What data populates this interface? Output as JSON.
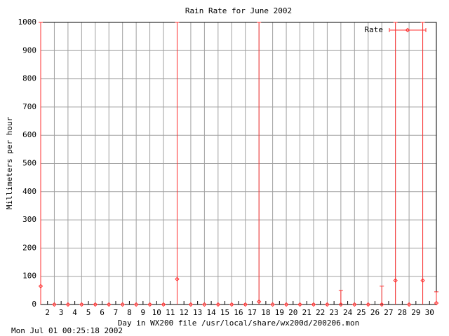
{
  "chart_data": {
    "type": "errorbar",
    "title": "Rain Rate for June 2002",
    "x_label": "Day in WX200 file /usr/local/share/wx200d/200206.mon",
    "y_label": "Millimeters per hour",
    "footer": "Mon Jul 01 00:25:18 2002",
    "x": [
      1.5,
      2.5,
      3.5,
      4.5,
      5.5,
      6.5,
      7.5,
      8.5,
      9.5,
      10.5,
      11.5,
      12.5,
      13.5,
      14.5,
      15.5,
      16.5,
      17.5,
      18.5,
      19.5,
      20.5,
      21.5,
      22.5,
      23.5,
      24.5,
      25.5,
      26.5,
      27.5,
      28.5,
      29.5,
      30.5
    ],
    "series": [
      {
        "name": "Rate",
        "color": "#ff3030",
        "values": [
          65,
          0,
          0,
          0,
          0,
          0,
          0,
          0,
          0,
          0,
          90,
          0,
          0,
          0,
          0,
          0,
          10,
          0,
          0,
          0,
          0,
          0,
          0,
          0,
          0,
          0,
          85,
          0,
          85,
          5
        ],
        "low": [
          0,
          0,
          0,
          0,
          0,
          0,
          0,
          0,
          0,
          0,
          0,
          0,
          0,
          0,
          0,
          0,
          0,
          0,
          0,
          0,
          0,
          0,
          0,
          0,
          0,
          0,
          0,
          0,
          0,
          0
        ],
        "high": [
          1000,
          0,
          0,
          0,
          0,
          0,
          0,
          0,
          0,
          0,
          1000,
          0,
          0,
          0,
          0,
          0,
          1000,
          0,
          0,
          0,
          0,
          0,
          50,
          0,
          0,
          65,
          1000,
          0,
          1000,
          45
        ]
      }
    ],
    "xlim": [
      1.5,
      30.5
    ],
    "ylim": [
      0,
      1000
    ],
    "xticks": [
      2,
      3,
      4,
      5,
      6,
      7,
      8,
      9,
      10,
      11,
      12,
      13,
      14,
      15,
      16,
      17,
      18,
      19,
      20,
      21,
      22,
      23,
      24,
      25,
      26,
      27,
      28,
      29,
      30
    ],
    "yticks": [
      0,
      100,
      200,
      300,
      400,
      500,
      600,
      700,
      800,
      900,
      1000
    ],
    "x_grid": [
      2.5,
      3.5,
      4.5,
      5.5,
      6.5,
      7.5,
      8.5,
      9.5,
      10.5,
      11.5,
      12.5,
      13.5,
      14.5,
      15.5,
      16.5,
      17.5,
      18.5,
      19.5,
      20.5,
      21.5,
      22.5,
      23.5,
      24.5,
      25.5,
      26.5,
      27.5,
      28.5,
      29.5
    ],
    "grid": true,
    "legend": "top-right"
  }
}
